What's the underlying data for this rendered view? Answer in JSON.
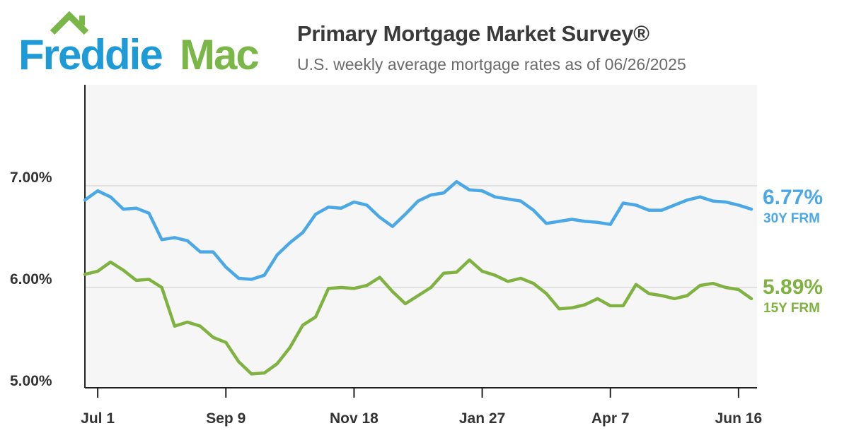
{
  "header": {
    "logo_text_1": "Freddie",
    "logo_text_2": "Mac",
    "title": "Primary Mortgage Market Survey®",
    "subtitle": "U.S. weekly average mortgage rates as of 06/26/2025"
  },
  "colors": {
    "brand_blue": "#1e9bd7",
    "brand_green": "#7ab648",
    "series_30y": "#4ba8e6",
    "series_15y": "#7fb241",
    "plot_bg": "#f6f6f6",
    "grid": "#dddddd"
  },
  "chart_data": {
    "type": "line",
    "title": "Primary Mortgage Market Survey®",
    "subtitle": "U.S. weekly average mortgage rates as of 06/26/2025",
    "xlabel": "",
    "ylabel": "",
    "ylim": [
      4.9,
      7.9
    ],
    "grid": true,
    "yticks": [
      {
        "value": 7.0,
        "label": "7.00%"
      },
      {
        "value": 6.0,
        "label": "6.00%"
      },
      {
        "value": 5.0,
        "label": "5.00%"
      }
    ],
    "xticks": [
      {
        "index": 1,
        "label": "Jul 1"
      },
      {
        "index": 11,
        "label": "Sep 9"
      },
      {
        "index": 21,
        "label": "Nov 18"
      },
      {
        "index": 31,
        "label": "Jan 27"
      },
      {
        "index": 41,
        "label": "Apr 7"
      },
      {
        "index": 51,
        "label": "Jun 16"
      }
    ],
    "x": [
      "Jun 27",
      "Jul 3",
      "Jul 11",
      "Jul 18",
      "Jul 25",
      "Aug 1",
      "Aug 8",
      "Aug 15",
      "Aug 22",
      "Aug 29",
      "Sep 5",
      "Sep 12",
      "Sep 19",
      "Sep 26",
      "Oct 3",
      "Oct 10",
      "Oct 17",
      "Oct 24",
      "Oct 31",
      "Nov 7",
      "Nov 14",
      "Nov 21",
      "Nov 27",
      "Dec 5",
      "Dec 12",
      "Dec 19",
      "Dec 26",
      "Jan 2",
      "Jan 9",
      "Jan 16",
      "Jan 23",
      "Jan 30",
      "Feb 6",
      "Feb 13",
      "Feb 20",
      "Feb 27",
      "Mar 6",
      "Mar 13",
      "Mar 20",
      "Mar 27",
      "Apr 3",
      "Apr 10",
      "Apr 17",
      "Apr 24",
      "May 1",
      "May 8",
      "May 15",
      "May 22",
      "May 29",
      "Jun 5",
      "Jun 12",
      "Jun 18",
      "Jun 26"
    ],
    "series": [
      {
        "name": "30Y FRM",
        "color": "#4ba8e6",
        "end_label": "6.77%",
        "values": [
          6.86,
          6.95,
          6.89,
          6.77,
          6.78,
          6.73,
          6.47,
          6.49,
          6.46,
          6.35,
          6.35,
          6.2,
          6.09,
          6.08,
          6.12,
          6.32,
          6.44,
          6.54,
          6.72,
          6.79,
          6.78,
          6.84,
          6.81,
          6.69,
          6.6,
          6.72,
          6.85,
          6.91,
          6.93,
          7.04,
          6.96,
          6.95,
          6.89,
          6.87,
          6.85,
          6.76,
          6.63,
          6.65,
          6.67,
          6.65,
          6.64,
          6.62,
          6.83,
          6.81,
          6.76,
          6.76,
          6.81,
          6.86,
          6.89,
          6.85,
          6.84,
          6.81,
          6.77
        ]
      },
      {
        "name": "15Y FRM",
        "color": "#7fb241",
        "end_label": "5.89%",
        "values": [
          6.13,
          6.16,
          6.25,
          6.17,
          6.07,
          6.08,
          6.0,
          5.62,
          5.66,
          5.62,
          5.51,
          5.46,
          5.27,
          5.15,
          5.16,
          5.25,
          5.41,
          5.63,
          5.71,
          5.99,
          6.0,
          5.99,
          6.02,
          6.1,
          5.96,
          5.84,
          5.92,
          6.0,
          6.14,
          6.15,
          6.27,
          6.16,
          6.12,
          6.06,
          6.09,
          6.04,
          5.94,
          5.79,
          5.8,
          5.83,
          5.89,
          5.82,
          5.82,
          6.03,
          5.94,
          5.92,
          5.89,
          5.92,
          6.02,
          6.04,
          6.0,
          5.98,
          5.89
        ]
      }
    ]
  }
}
